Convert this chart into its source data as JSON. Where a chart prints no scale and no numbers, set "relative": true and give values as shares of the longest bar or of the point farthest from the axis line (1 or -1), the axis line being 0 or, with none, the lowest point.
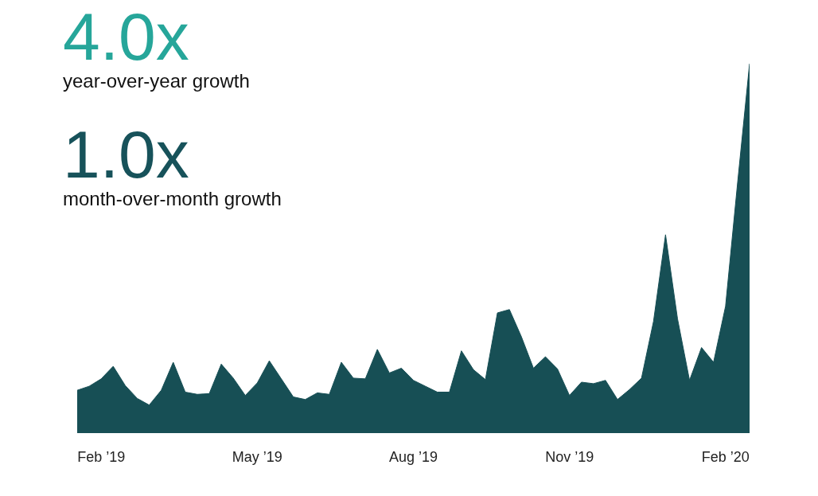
{
  "chart_data": {
    "type": "area",
    "relative": true,
    "annotations": [
      "4.0x",
      "year-over-year growth",
      "1.0x",
      "month-over-month growth"
    ],
    "categories": [
      null,
      null,
      "Feb ’19",
      null,
      null,
      null,
      null,
      null,
      null,
      null,
      null,
      null,
      null,
      null,
      null,
      "May ’19",
      null,
      null,
      null,
      null,
      null,
      null,
      null,
      null,
      null,
      null,
      null,
      null,
      "Aug ’19",
      null,
      null,
      null,
      null,
      null,
      null,
      null,
      null,
      null,
      null,
      null,
      null,
      "Nov ’19",
      null,
      null,
      null,
      null,
      null,
      null,
      null,
      null,
      null,
      null,
      null,
      null,
      "Feb ’20",
      null,
      null
    ],
    "series": [
      {
        "color": "#174f55",
        "values": [
          0.114,
          0.125,
          0.145,
          0.179,
          0.127,
          0.092,
          0.074,
          0.114,
          0.19,
          0.109,
          0.103,
          0.105,
          0.185,
          0.147,
          0.1,
          0.134,
          0.194,
          0.145,
          0.096,
          0.089,
          0.107,
          0.103,
          0.19,
          0.147,
          0.145,
          0.225,
          0.161,
          0.174,
          0.141,
          0.125,
          0.109,
          0.109,
          0.221,
          0.17,
          0.143,
          0.324,
          0.333,
          0.259,
          0.174,
          0.205,
          0.172,
          0.1,
          0.136,
          0.132,
          0.141,
          0.089,
          0.116,
          0.147,
          0.301,
          0.536,
          0.308,
          0.141,
          0.23,
          0.19,
          0.342,
          0.676,
          1
        ]
      }
    ]
  }
}
